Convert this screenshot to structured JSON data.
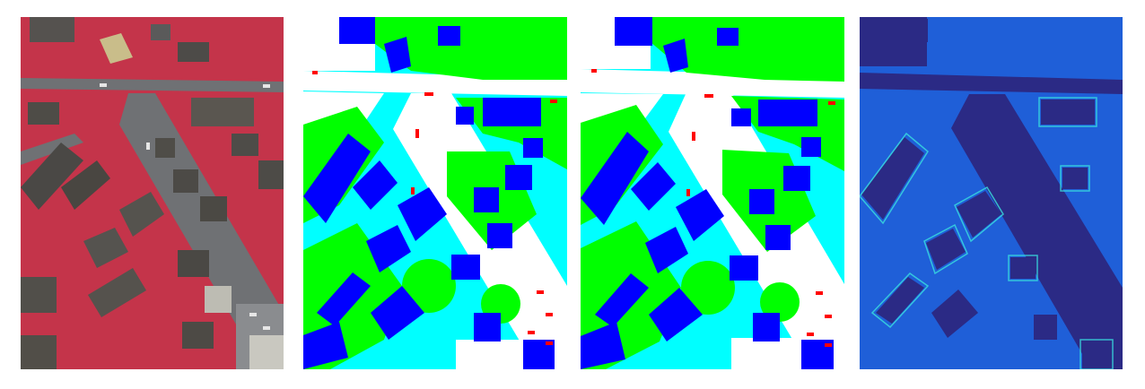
{
  "figure": {
    "panels": [
      {
        "id": "infrared-aerial-image",
        "kind": "false-color infrared orthophoto"
      },
      {
        "id": "ground-truth-segmentation",
        "kind": "semantic label map"
      },
      {
        "id": "predicted-segmentation",
        "kind": "semantic label map"
      },
      {
        "id": "uncertainty-heatmap",
        "kind": "jet-colored heatmap"
      }
    ],
    "label_colors": {
      "impervious_surface": "#ffffff",
      "building": "#0000ff",
      "low_vegetation": "#00ffff",
      "tree": "#00ff00",
      "car": "#ff0000"
    },
    "photo_colors": {
      "vegetation_red": "#d8394f",
      "road_gray": "#6f7174",
      "roof_dark": "#4a4a48",
      "roof_light": "#b9b8ad"
    },
    "heatmap_colors": {
      "low": "#2b2a85",
      "mid": "#1f5fd8",
      "high": "#39e0e0"
    }
  }
}
